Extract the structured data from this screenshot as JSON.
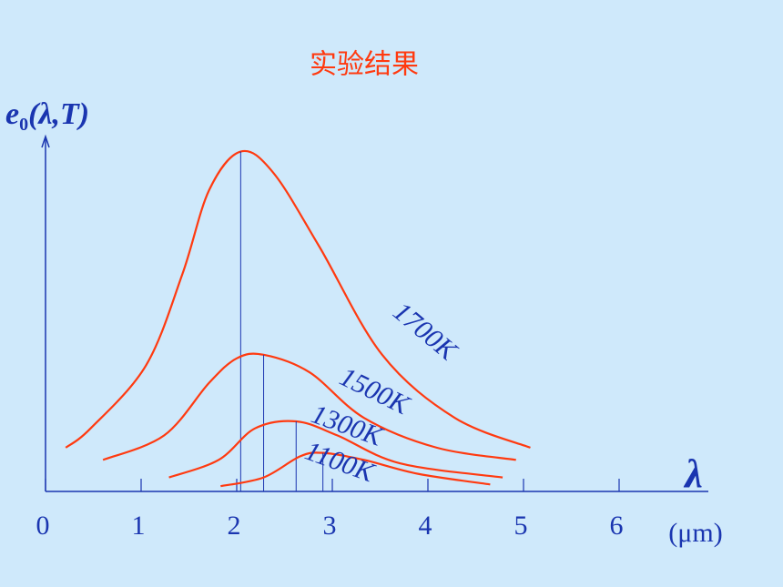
{
  "chart_data": {
    "type": "line",
    "title": "实验结果",
    "ylabel": {
      "base": "e",
      "sub": "0",
      "rest": "(λ,T)"
    },
    "xlabel": "λ",
    "xunit": "(μm)",
    "xlim": [
      0,
      7
    ],
    "xticks": [
      0,
      1,
      2,
      3,
      4,
      5,
      6
    ],
    "ylim": [
      0,
      100
    ],
    "series": [
      {
        "name": "1700K",
        "color": "#ff3a10",
        "x": [
          0.24,
          0.5,
          1.08,
          1.46,
          1.74,
          2.07,
          2.41,
          2.89,
          3.55,
          4.31,
          5.1
        ],
        "values": [
          12.5,
          18,
          36,
          62,
          86,
          97,
          91,
          70,
          39,
          21,
          12.5
        ]
      },
      {
        "name": "1500K",
        "color": "#ff3a10",
        "x": [
          0.63,
          1.27,
          1.74,
          2.03,
          2.31,
          2.79,
          3.36,
          4.12,
          4.95
        ],
        "values": [
          9,
          16,
          31,
          38,
          39,
          34,
          21,
          12.5,
          9
        ]
      },
      {
        "name": "1300K",
        "color": "#ff3a10",
        "x": [
          1.32,
          1.84,
          2.22,
          2.65,
          3.08,
          3.74,
          4.81
        ],
        "values": [
          4,
          9,
          18,
          20,
          16,
          8,
          4
        ]
      },
      {
        "name": "1100K",
        "color": "#ff3a10",
        "x": [
          1.86,
          2.31,
          2.69,
          2.93,
          3.36,
          3.93,
          4.68
        ],
        "values": [
          1.5,
          4,
          10,
          11,
          9,
          5,
          2
        ]
      }
    ]
  }
}
